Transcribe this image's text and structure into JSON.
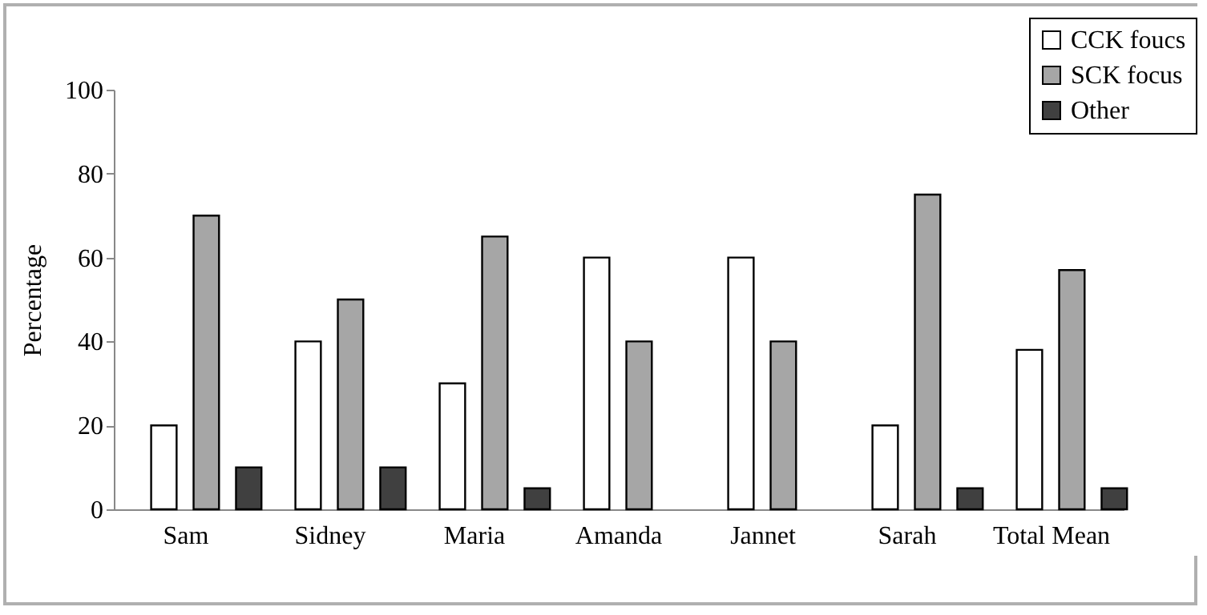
{
  "chart_data": {
    "type": "bar",
    "ylabel": "Percentage",
    "categories": [
      "Sam",
      "Sidney",
      "Maria",
      "Amanda",
      "Jannet",
      "Sarah",
      "Total Mean"
    ],
    "series": [
      {
        "name": "CCK foucs",
        "color": "#ffffff",
        "values": [
          20,
          40,
          30,
          60,
          60,
          20,
          38
        ]
      },
      {
        "name": "SCK focus",
        "color": "#a6a6a6",
        "values": [
          70,
          50,
          65,
          40,
          40,
          75,
          57
        ]
      },
      {
        "name": "Other",
        "color": "#404040",
        "values": [
          10,
          10,
          5,
          null,
          null,
          5,
          5
        ]
      }
    ],
    "ylim": [
      0,
      100
    ],
    "yticks": [
      0,
      20,
      40,
      60,
      80,
      100
    ],
    "grid": false,
    "legend": "top right"
  }
}
